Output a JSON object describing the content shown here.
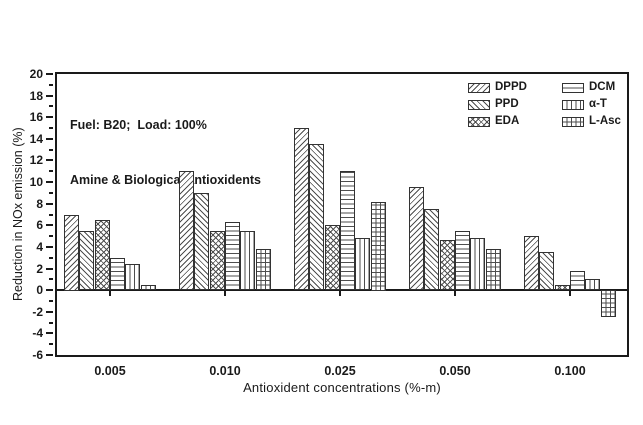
{
  "chart_data": {
    "type": "bar",
    "annotation_line1": "Fuel: B20;  Load: 100%",
    "annotation_line2": "Amine & Biological antioxidents",
    "xlabel": "Antioxident concentrations (%-m)",
    "ylabel": "Reduction in NOx emission (%)",
    "categories": [
      "0.005",
      "0.010",
      "0.025",
      "0.050",
      "0.100"
    ],
    "series": [
      {
        "name": "DPPD",
        "pattern": "diag-forward",
        "values": [
          7.0,
          11.0,
          15.0,
          9.5,
          5.0
        ]
      },
      {
        "name": "PPD",
        "pattern": "diag-back",
        "values": [
          5.5,
          9.0,
          13.5,
          7.5,
          3.5
        ]
      },
      {
        "name": "EDA",
        "pattern": "diag-cross",
        "values": [
          6.5,
          5.5,
          6.0,
          4.6,
          0.5
        ]
      },
      {
        "name": "DCM",
        "pattern": "horizontal",
        "values": [
          3.0,
          6.3,
          11.0,
          5.5,
          1.8
        ]
      },
      {
        "name": "α-T",
        "pattern": "vertical",
        "values": [
          2.4,
          5.5,
          4.8,
          4.8,
          1.0
        ]
      },
      {
        "name": "L-Asc",
        "pattern": "grid",
        "values": [
          0.5,
          3.8,
          8.2,
          3.8,
          -2.5
        ]
      }
    ],
    "ylim": [
      -6,
      20
    ],
    "ytick_major_step": 2,
    "ytick_minor_step": 1,
    "legend_position": "top-right",
    "grid": false,
    "colors": {
      "ink": "#1a1a1a",
      "bar_fill": "#ffffff",
      "hatch": "#4e4e4e"
    }
  }
}
